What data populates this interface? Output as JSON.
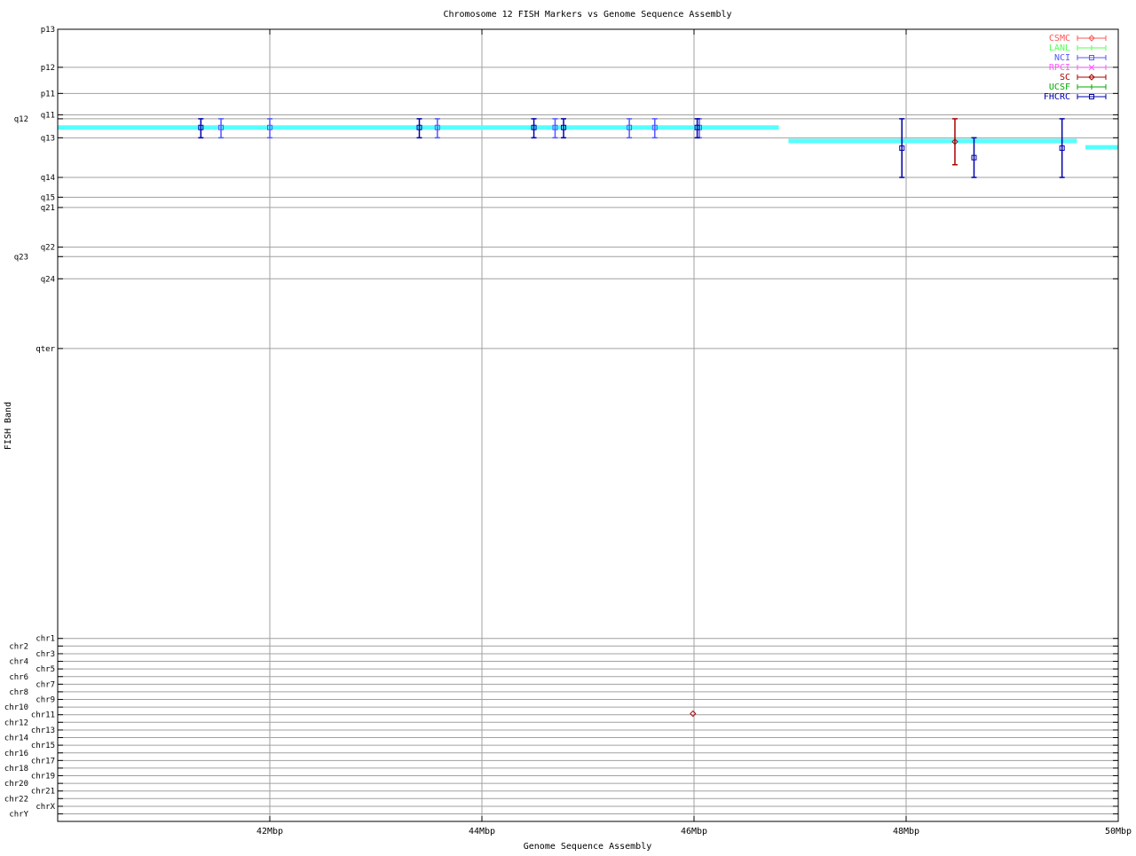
{
  "chart_data": {
    "type": "scatter",
    "title": "Chromosome 12 FISH Markers vs Genome Sequence Assembly",
    "xlabel": "Genome Sequence Assembly",
    "ylabel": "FISH Band",
    "xlim": [
      40,
      50
    ],
    "ylim": [
      0,
      100
    ],
    "y_inverted": true,
    "grid": true,
    "legend_position": "top-right",
    "x_ticks": [
      {
        "value": 42,
        "label": "42Mbp"
      },
      {
        "value": 44,
        "label": "44Mbp"
      },
      {
        "value": 46,
        "label": "46Mbp"
      },
      {
        "value": 48,
        "label": "48Mbp"
      },
      {
        "value": 50,
        "label": "50Mbp"
      }
    ],
    "y_ticks": [
      {
        "value": 0,
        "label": "p13"
      },
      {
        "value": 4.8,
        "label": "p12"
      },
      {
        "value": 8.1,
        "label": "p11"
      },
      {
        "value": 10.8,
        "label": "q11"
      },
      {
        "value": 11.3,
        "label": "q12"
      },
      {
        "value": 13.7,
        "label": "q13"
      },
      {
        "value": 18.7,
        "label": "q14"
      },
      {
        "value": 21.2,
        "label": "q15"
      },
      {
        "value": 22.5,
        "label": "q21"
      },
      {
        "value": 27.5,
        "label": "q22"
      },
      {
        "value": 28.7,
        "label": "q23"
      },
      {
        "value": 31.5,
        "label": "q24"
      },
      {
        "value": 40.3,
        "label": "qter"
      },
      {
        "value": 76.9,
        "label": "chr1"
      },
      {
        "value": 77.86,
        "label": "chr2"
      },
      {
        "value": 78.83,
        "label": "chr3"
      },
      {
        "value": 79.79,
        "label": "chr4"
      },
      {
        "value": 80.75,
        "label": "chr5"
      },
      {
        "value": 81.72,
        "label": "chr6"
      },
      {
        "value": 82.68,
        "label": "chr7"
      },
      {
        "value": 83.64,
        "label": "chr8"
      },
      {
        "value": 84.6,
        "label": "chr9"
      },
      {
        "value": 85.57,
        "label": "chr10"
      },
      {
        "value": 86.53,
        "label": "chr11"
      },
      {
        "value": 87.49,
        "label": "chr12"
      },
      {
        "value": 88.46,
        "label": "chr13"
      },
      {
        "value": 89.42,
        "label": "chr14"
      },
      {
        "value": 90.38,
        "label": "chr15"
      },
      {
        "value": 91.35,
        "label": "chr16"
      },
      {
        "value": 92.31,
        "label": "chr17"
      },
      {
        "value": 93.27,
        "label": "chr18"
      },
      {
        "value": 94.23,
        "label": "chr19"
      },
      {
        "value": 95.2,
        "label": "chr20"
      },
      {
        "value": 96.16,
        "label": "chr21"
      },
      {
        "value": 97.12,
        "label": "chr22"
      },
      {
        "value": 98.09,
        "label": "chrX"
      },
      {
        "value": 99.05,
        "label": "chrY"
      }
    ],
    "assembly_bands": {
      "color": "#55ffff",
      "segments": [
        {
          "x0": 40.0,
          "x1": 46.8,
          "y": 12.4
        },
        {
          "x0": 46.89,
          "x1": 49.61,
          "y": 14.1
        },
        {
          "x0": 49.69,
          "x1": 50.0,
          "y": 14.9
        }
      ]
    },
    "series": [
      {
        "name": "CSMC",
        "color": "#ff5555",
        "marker": "diamond",
        "points": []
      },
      {
        "name": "LANL",
        "color": "#55ff55",
        "marker": "plus",
        "points": []
      },
      {
        "name": "NCI",
        "color": "#5555ff",
        "marker": "square",
        "points": [
          {
            "x": 41.54,
            "y": 12.4,
            "ylow": 11.3,
            "yhigh": 13.7
          },
          {
            "x": 42.0,
            "y": 12.4,
            "ylow": 11.3,
            "yhigh": 13.7
          },
          {
            "x": 43.58,
            "y": 12.4,
            "ylow": 11.3,
            "yhigh": 13.7
          },
          {
            "x": 44.69,
            "y": 12.4,
            "ylow": 11.3,
            "yhigh": 13.7
          },
          {
            "x": 45.39,
            "y": 12.4,
            "ylow": 11.3,
            "yhigh": 13.7
          },
          {
            "x": 45.63,
            "y": 12.4,
            "ylow": 11.3,
            "yhigh": 13.7
          },
          {
            "x": 46.05,
            "y": 12.4,
            "ylow": 11.3,
            "yhigh": 13.7
          }
        ]
      },
      {
        "name": "RPCI",
        "color": "#ff55ff",
        "marker": "cross",
        "points": []
      },
      {
        "name": "SC",
        "color": "#aa0000",
        "marker": "diamond",
        "points": [
          {
            "x": 48.46,
            "y": 14.2,
            "ylow": 11.3,
            "yhigh": 17.1
          },
          {
            "x": 45.99,
            "y": 86.4,
            "ylow": 86.4,
            "yhigh": 86.4
          }
        ]
      },
      {
        "name": "UCSF",
        "color": "#00aa00",
        "marker": "plus",
        "points": []
      },
      {
        "name": "FHCRC",
        "color": "#0000aa",
        "marker": "square",
        "points": [
          {
            "x": 41.35,
            "y": 12.4,
            "ylow": 11.3,
            "yhigh": 13.7
          },
          {
            "x": 43.41,
            "y": 12.4,
            "ylow": 11.3,
            "yhigh": 13.7
          },
          {
            "x": 44.49,
            "y": 12.4,
            "ylow": 11.3,
            "yhigh": 13.7
          },
          {
            "x": 44.77,
            "y": 12.4,
            "ylow": 11.3,
            "yhigh": 13.7
          },
          {
            "x": 46.03,
            "y": 12.4,
            "ylow": 11.3,
            "yhigh": 13.7
          },
          {
            "x": 47.96,
            "y": 15.0,
            "ylow": 11.3,
            "yhigh": 18.7
          },
          {
            "x": 48.64,
            "y": 16.2,
            "ylow": 13.7,
            "yhigh": 18.7
          },
          {
            "x": 49.47,
            "y": 15.0,
            "ylow": 11.3,
            "yhigh": 18.7
          }
        ]
      }
    ]
  }
}
